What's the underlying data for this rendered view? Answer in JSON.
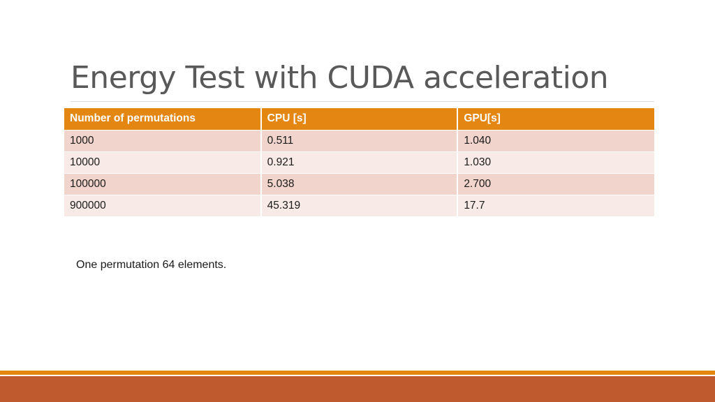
{
  "slide": {
    "title": "Energy Test with CUDA acceleration",
    "footnote": "One permutation 64 elements."
  },
  "table": {
    "headers": [
      "Number of permutations",
      "CPU [s]",
      "GPU[s]"
    ],
    "rows": [
      [
        "1000",
        "0.511",
        "1.040"
      ],
      [
        "10000",
        "0.921",
        "1.030"
      ],
      [
        "100000",
        "5.038",
        "2.700"
      ],
      [
        "900000",
        "45.319",
        "17.7"
      ]
    ]
  },
  "colors": {
    "header_fill": "#e38612",
    "row_fill_dark": "#f1d4cb",
    "row_fill_light": "#f8eae6",
    "accent_orange": "#e38612",
    "accent_rust": "#bf5a2e",
    "title_text": "#595959"
  }
}
